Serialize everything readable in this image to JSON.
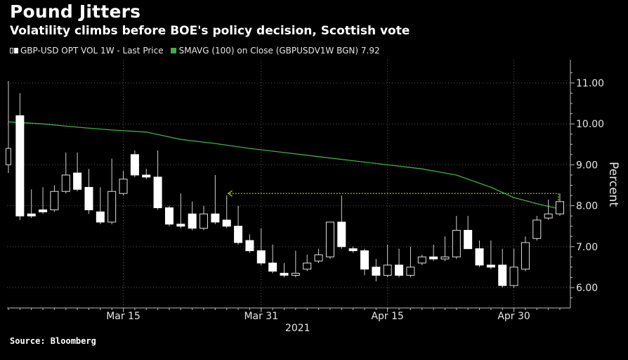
{
  "header": {
    "title": "Pound Jitters",
    "subtitle": "Volatility climbs before BOE's policy decision, Scottish vote"
  },
  "legend": {
    "series1_label": "GBP-USD OPT VOL 1W - Last Price",
    "series2_label": "SMAVG (100)  on Close (GBPUSDV1W BGN) 7.92"
  },
  "footer": {
    "source": "Source: Bloomberg"
  },
  "colors": {
    "background": "#000000",
    "candle_up": "#000000",
    "candle_down": "#ffffff",
    "smavg": "#3cb043",
    "grid": "#555555",
    "annotation": "#9acd32"
  },
  "chart_data": {
    "type": "candlestick",
    "ylabel": "Percent",
    "ylim": [
      5.5,
      11.5
    ],
    "yticks": [
      "11.00",
      "10.00",
      "9.00",
      "8.00",
      "7.00",
      "6.00"
    ],
    "ytick_values": [
      11,
      10,
      9,
      8,
      7,
      6
    ],
    "x_ticks": [
      {
        "label": "Mar 15",
        "index": 10
      },
      {
        "label": "Mar 31",
        "index": 22
      },
      {
        "label": "Apr 15",
        "index": 33
      },
      {
        "label": "Apr 30",
        "index": 44
      }
    ],
    "year_label": "2021",
    "grid": true,
    "candles": [
      {
        "o": 9.0,
        "h": 11.05,
        "l": 8.8,
        "c": 9.4
      },
      {
        "o": 10.2,
        "h": 10.75,
        "l": 7.65,
        "c": 7.75
      },
      {
        "o": 7.8,
        "h": 8.4,
        "l": 7.7,
        "c": 7.75
      },
      {
        "o": 7.9,
        "h": 8.45,
        "l": 7.8,
        "c": 7.85
      },
      {
        "o": 7.9,
        "h": 8.5,
        "l": 7.85,
        "c": 8.35
      },
      {
        "o": 8.35,
        "h": 9.3,
        "l": 8.3,
        "c": 8.75
      },
      {
        "o": 8.8,
        "h": 9.3,
        "l": 8.35,
        "c": 8.4
      },
      {
        "o": 8.45,
        "h": 8.9,
        "l": 7.8,
        "c": 7.9
      },
      {
        "o": 7.85,
        "h": 8.45,
        "l": 7.55,
        "c": 7.6
      },
      {
        "o": 7.6,
        "h": 9.15,
        "l": 7.55,
        "c": 8.35
      },
      {
        "o": 8.3,
        "h": 8.85,
        "l": 8.25,
        "c": 8.65
      },
      {
        "o": 9.25,
        "h": 9.35,
        "l": 8.7,
        "c": 8.75
      },
      {
        "o": 8.75,
        "h": 8.9,
        "l": 8.65,
        "c": 8.7
      },
      {
        "o": 8.7,
        "h": 9.35,
        "l": 7.9,
        "c": 7.95
      },
      {
        "o": 7.95,
        "h": 8.0,
        "l": 7.5,
        "c": 7.55
      },
      {
        "o": 7.55,
        "h": 8.3,
        "l": 7.45,
        "c": 7.5
      },
      {
        "o": 7.8,
        "h": 8.1,
        "l": 7.4,
        "c": 7.45
      },
      {
        "o": 7.45,
        "h": 8.0,
        "l": 7.4,
        "c": 7.8
      },
      {
        "o": 7.8,
        "h": 8.75,
        "l": 7.55,
        "c": 7.6
      },
      {
        "o": 7.65,
        "h": 8.25,
        "l": 7.45,
        "c": 7.5
      },
      {
        "o": 7.5,
        "h": 8.0,
        "l": 7.05,
        "c": 7.1
      },
      {
        "o": 7.15,
        "h": 7.3,
        "l": 6.85,
        "c": 6.9
      },
      {
        "o": 6.9,
        "h": 7.45,
        "l": 6.55,
        "c": 6.6
      },
      {
        "o": 6.6,
        "h": 7.05,
        "l": 6.35,
        "c": 6.4
      },
      {
        "o": 6.35,
        "h": 6.6,
        "l": 6.25,
        "c": 6.3
      },
      {
        "o": 6.3,
        "h": 6.9,
        "l": 6.25,
        "c": 6.35
      },
      {
        "o": 6.45,
        "h": 6.8,
        "l": 6.4,
        "c": 6.6
      },
      {
        "o": 6.65,
        "h": 6.95,
        "l": 6.6,
        "c": 6.8
      },
      {
        "o": 6.75,
        "h": 7.6,
        "l": 6.7,
        "c": 7.6
      },
      {
        "o": 7.6,
        "h": 8.25,
        "l": 6.95,
        "c": 7.0
      },
      {
        "o": 6.95,
        "h": 7.0,
        "l": 6.85,
        "c": 6.9
      },
      {
        "o": 6.9,
        "h": 6.95,
        "l": 6.3,
        "c": 6.45
      },
      {
        "o": 6.5,
        "h": 6.7,
        "l": 6.15,
        "c": 6.3
      },
      {
        "o": 6.3,
        "h": 7.05,
        "l": 6.25,
        "c": 6.55
      },
      {
        "o": 6.55,
        "h": 6.95,
        "l": 6.25,
        "c": 6.3
      },
      {
        "o": 6.3,
        "h": 7.0,
        "l": 6.25,
        "c": 6.5
      },
      {
        "o": 6.6,
        "h": 6.8,
        "l": 6.55,
        "c": 6.75
      },
      {
        "o": 6.75,
        "h": 7.05,
        "l": 6.65,
        "c": 6.7
      },
      {
        "o": 6.7,
        "h": 7.25,
        "l": 6.65,
        "c": 6.75
      },
      {
        "o": 6.75,
        "h": 7.75,
        "l": 6.7,
        "c": 7.4
      },
      {
        "o": 7.4,
        "h": 7.75,
        "l": 6.95,
        "c": 6.95
      },
      {
        "o": 6.95,
        "h": 7.15,
        "l": 6.5,
        "c": 6.55
      },
      {
        "o": 6.55,
        "h": 7.15,
        "l": 6.45,
        "c": 6.5
      },
      {
        "o": 6.55,
        "h": 6.95,
        "l": 6.0,
        "c": 6.05
      },
      {
        "o": 6.05,
        "h": 6.95,
        "l": 6.0,
        "c": 6.5
      },
      {
        "o": 6.45,
        "h": 7.25,
        "l": 6.4,
        "c": 7.1
      },
      {
        "o": 7.2,
        "h": 7.75,
        "l": 7.15,
        "c": 7.65
      },
      {
        "o": 7.7,
        "h": 8.15,
        "l": 7.65,
        "c": 7.8
      },
      {
        "o": 7.8,
        "h": 8.3,
        "l": 7.75,
        "c": 8.1
      }
    ],
    "smavg_points": [
      [
        0,
        10.05
      ],
      [
        3,
        10.0
      ],
      [
        6,
        9.92
      ],
      [
        9,
        9.85
      ],
      [
        12,
        9.8
      ],
      [
        15,
        9.62
      ],
      [
        18,
        9.52
      ],
      [
        21,
        9.4
      ],
      [
        24,
        9.3
      ],
      [
        27,
        9.2
      ],
      [
        30,
        9.1
      ],
      [
        33,
        9.0
      ],
      [
        36,
        8.9
      ],
      [
        39,
        8.75
      ],
      [
        42,
        8.45
      ],
      [
        44,
        8.2
      ],
      [
        46,
        8.05
      ],
      [
        48,
        7.92
      ]
    ],
    "annotation": {
      "from_index": 19,
      "to_index": 48,
      "level": 8.3
    }
  }
}
